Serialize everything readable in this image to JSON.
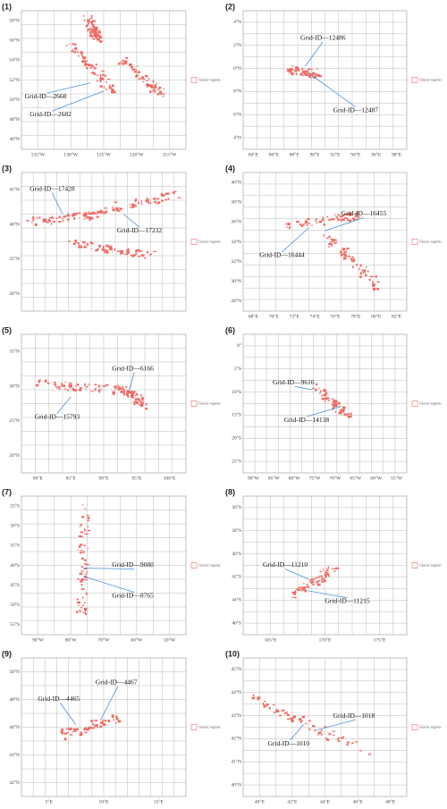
{
  "panels": [
    {
      "label": "(1)",
      "lat_ticks": [
        "58°N",
        "56°N",
        "54°N",
        "52°N",
        "50°N",
        "48°N",
        "46°N"
      ],
      "lon_ticks": [
        "135°W",
        "130°W",
        "125°W",
        "120°W",
        "115°W"
      ],
      "annotations": [
        "Grid-ID—2668",
        "Grid-ID—2682"
      ],
      "legend": "Glacier regions"
    },
    {
      "label": "(2)",
      "lat_ticks": [
        "4°N",
        "2°N",
        "0°N",
        "8°N",
        "6°N",
        "4°N"
      ],
      "lon_ticks": [
        "84°E",
        "86°E",
        "88°E",
        "90°E",
        "92°E",
        "94°E",
        "96°E",
        "98°E"
      ],
      "annotations": [
        "Grid-ID—12486",
        "Grid-ID—12487"
      ],
      "legend": "Glacier regions"
    },
    {
      "label": "(3)",
      "lat_ticks": [
        "45°N",
        "40°N",
        "35°N",
        "30°N"
      ],
      "lon_ticks": [],
      "annotations": [
        "Grid-ID—17428",
        "Grid-ID—17232"
      ],
      "legend": "Glacier regions"
    },
    {
      "label": "(4)",
      "lat_ticks": [
        "40°N",
        "38°N",
        "36°N",
        "34°N",
        "32°N",
        "30°N",
        "28°N"
      ],
      "lon_ticks": [
        "68°E",
        "70°E",
        "72°E",
        "74°E",
        "76°E",
        "78°E",
        "80°E",
        "82°E"
      ],
      "annotations": [
        "Grid-ID—16455",
        "Grid-ID—16444"
      ],
      "legend": "Glacier regions"
    },
    {
      "label": "(5)",
      "lat_ticks": [
        "35°N",
        "30°N",
        "25°N",
        "20°N"
      ],
      "lon_ticks": [
        "80°E",
        "85°E",
        "90°E",
        "95°E",
        "100°E"
      ],
      "annotations": [
        "Grid-ID—6166",
        "Grid-ID—15793"
      ],
      "legend": "Glacier regions"
    },
    {
      "label": "(6)",
      "lat_ticks": [
        "0°",
        "5°S",
        "10°S",
        "15°S",
        "20°S",
        "25°S"
      ],
      "lon_ticks": [
        "90°W",
        "85°W",
        "80°W",
        "75°W",
        "70°W",
        "65°W",
        "60°W",
        "55°W"
      ],
      "annotations": [
        "Grid-ID—9616",
        "Grid-ID—14138"
      ],
      "legend": "Glacier regions"
    },
    {
      "label": "(7)",
      "lat_ticks": [
        "25°S",
        "30°S",
        "35°S",
        "40°S",
        "45°S",
        "50°S",
        "55°S"
      ],
      "lon_ticks": [
        "90°W",
        "80°W",
        "70°W",
        "60°W",
        "50°W"
      ],
      "annotations": [
        "Grid-ID—9080",
        "Grid-ID—8765"
      ],
      "legend": "Glacier regions"
    },
    {
      "label": "(8)",
      "lat_ticks": [
        "36°S",
        "38°S",
        "40°S",
        "42°S",
        "44°S",
        "46°S"
      ],
      "lon_ticks": [
        "165°E",
        "170°E",
        "175°E"
      ],
      "annotations": [
        "Grid-ID—11210",
        "Grid-ID—11215"
      ],
      "legend": "Glacier regions"
    },
    {
      "label": "(9)",
      "lat_ticks": [
        "50°N",
        "48°N",
        "46°N",
        "44°N",
        "42°N"
      ],
      "lon_ticks": [
        "5°E",
        "10°E",
        "15°E"
      ],
      "annotations": [
        "Grid-ID—4465",
        "Grid-ID—4467"
      ],
      "legend": "Glacier regions"
    },
    {
      "label": "(10)",
      "lat_ticks": [
        "45°N",
        "44°N",
        "43°N",
        "42°N",
        "41°N",
        "40°N"
      ],
      "lon_ticks": [
        "40°E",
        "42°E",
        "44°E",
        "46°E",
        "48°E"
      ],
      "annotations": [
        "Grid-ID—1018",
        "Grid-ID—1010"
      ],
      "legend": "Glacier regions"
    }
  ]
}
